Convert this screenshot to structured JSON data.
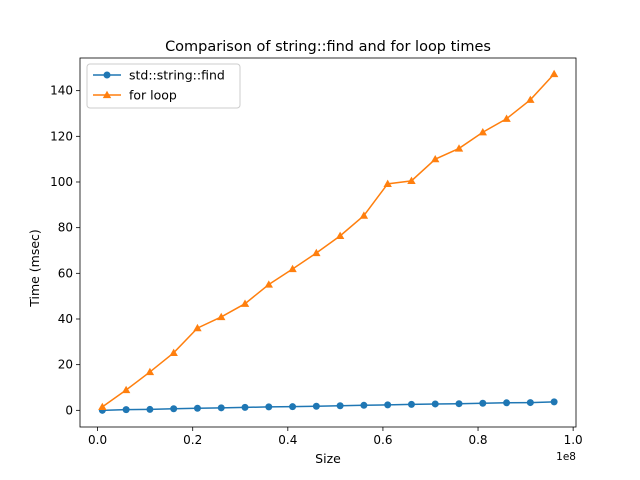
{
  "chart_data": {
    "type": "line",
    "title": "Comparison of string::find and for loop times",
    "xlabel": "Size",
    "ylabel": "Time (msec)",
    "x_offset_label": "1e8",
    "x_scale": 100000000,
    "xlim": [
      -0.037,
      1.006
    ],
    "ylim": [
      -7.3,
      154.3
    ],
    "x_ticks": [
      0.0,
      0.2,
      0.4,
      0.6,
      0.8,
      1.0
    ],
    "x_tick_labels": [
      "0.0",
      "0.2",
      "0.4",
      "0.6",
      "0.8",
      "1.0"
    ],
    "y_ticks": [
      0,
      20,
      40,
      60,
      80,
      100,
      120,
      140
    ],
    "y_tick_labels": [
      "0",
      "20",
      "40",
      "60",
      "80",
      "100",
      "120",
      "140"
    ],
    "grid": false,
    "legend_position": "top-left",
    "x": [
      1000000,
      6000000,
      11000000,
      16000000,
      21000000,
      26000000,
      31000000,
      36000000,
      41000000,
      46000000,
      51000000,
      56000000,
      61000000,
      66000000,
      71000000,
      76000000,
      81000000,
      86000000,
      91000000,
      96000000
    ],
    "series": [
      {
        "name": "std::string::find",
        "color": "#1f77b4",
        "marker": "circle",
        "values": [
          0.0,
          0.3,
          0.4,
          0.7,
          0.9,
          1.1,
          1.3,
          1.5,
          1.6,
          1.8,
          2.0,
          2.2,
          2.4,
          2.6,
          2.8,
          2.9,
          3.1,
          3.3,
          3.4,
          3.7
        ]
      },
      {
        "name": "for loop",
        "color": "#ff7f0e",
        "marker": "triangle",
        "values": [
          1.5,
          8.9,
          16.8,
          25.2,
          36.0,
          40.9,
          46.7,
          55.1,
          61.9,
          68.9,
          76.4,
          85.3,
          99.2,
          100.5,
          110.0,
          114.7,
          121.8,
          127.7,
          136.0,
          147.3
        ]
      }
    ]
  }
}
